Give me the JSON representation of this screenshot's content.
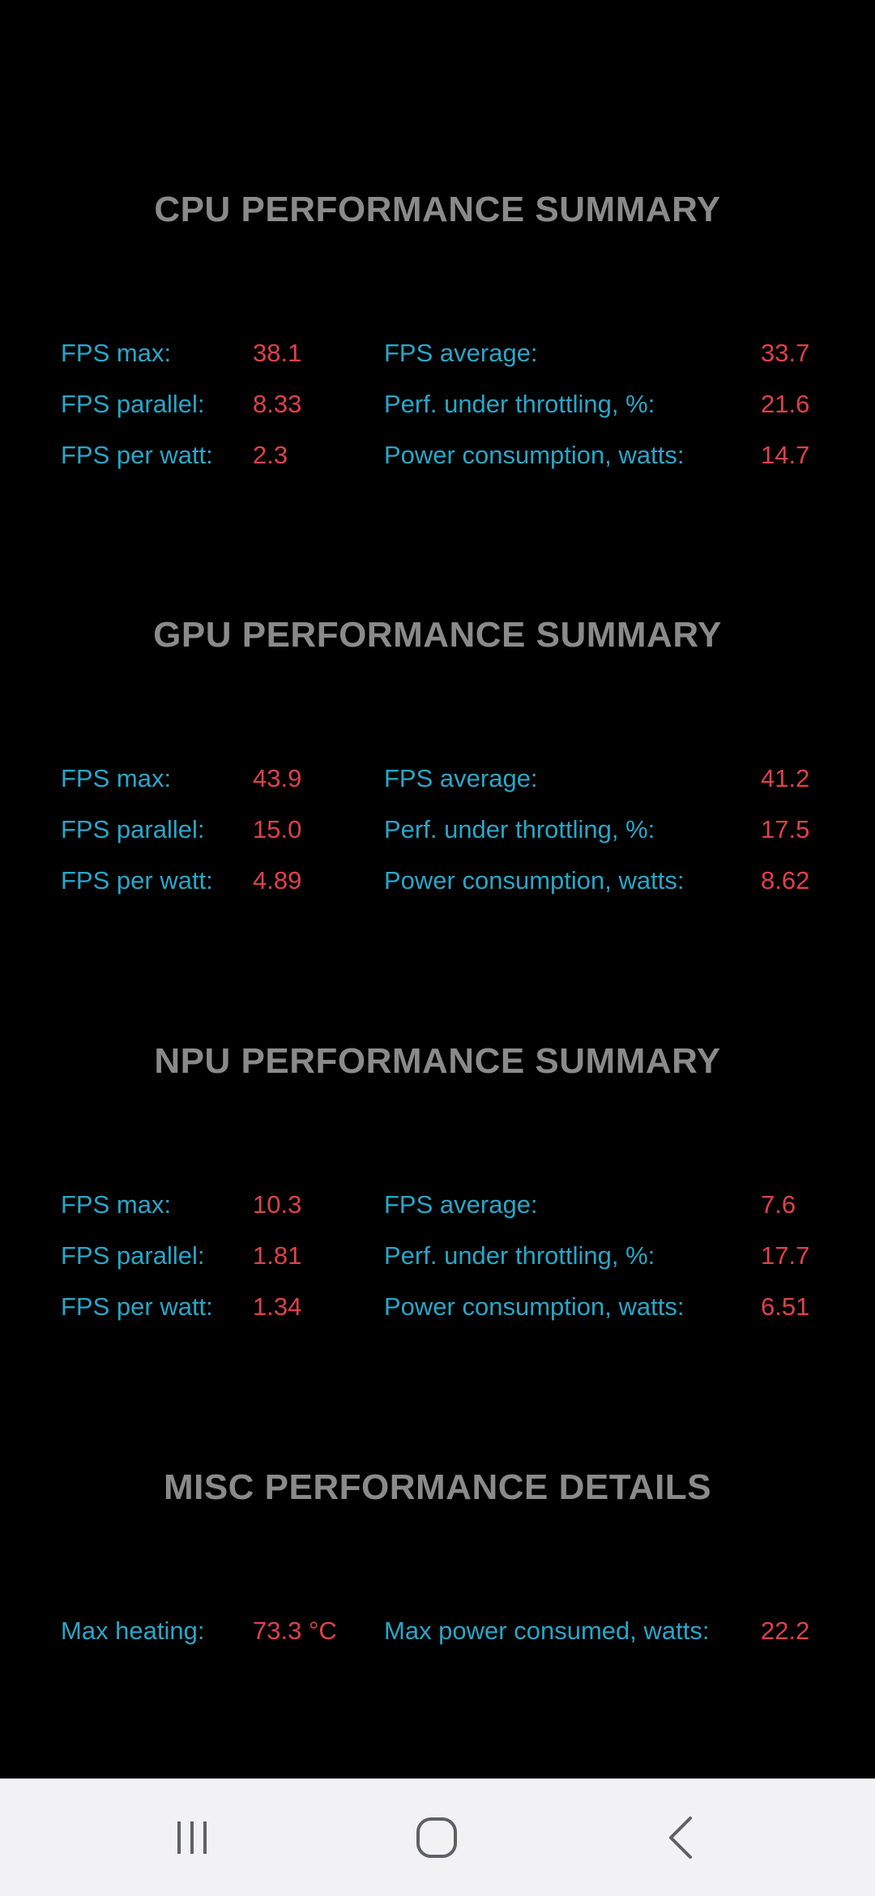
{
  "sections": [
    {
      "title": "CPU PERFORMANCE SUMMARY",
      "rows": [
        {
          "l1": "FPS max:",
          "v1": "38.1",
          "l2": "FPS average:",
          "v2": "33.7"
        },
        {
          "l1": "FPS parallel:",
          "v1": "8.33",
          "l2": "Perf. under throttling, %:",
          "v2": "21.6"
        },
        {
          "l1": "FPS per watt:",
          "v1": "2.3",
          "l2": "Power consumption, watts:",
          "v2": "14.7"
        }
      ]
    },
    {
      "title": "GPU PERFORMANCE SUMMARY",
      "rows": [
        {
          "l1": "FPS max:",
          "v1": "43.9",
          "l2": "FPS average:",
          "v2": "41.2"
        },
        {
          "l1": "FPS parallel:",
          "v1": "15.0",
          "l2": "Perf. under throttling, %:",
          "v2": "17.5"
        },
        {
          "l1": "FPS per watt:",
          "v1": "4.89",
          "l2": "Power consumption, watts:",
          "v2": "8.62"
        }
      ]
    },
    {
      "title": "NPU PERFORMANCE SUMMARY",
      "rows": [
        {
          "l1": "FPS max:",
          "v1": "10.3",
          "l2": "FPS average:",
          "v2": "7.6"
        },
        {
          "l1": "FPS parallel:",
          "v1": "1.81",
          "l2": "Perf. under throttling, %:",
          "v2": "17.7"
        },
        {
          "l1": "FPS per watt:",
          "v1": "1.34",
          "l2": "Power consumption, watts:",
          "v2": "6.51"
        }
      ]
    },
    {
      "title": "MISC PERFORMANCE DETAILS",
      "rows": [
        {
          "l1": "Max heating:",
          "v1": "73.3 °C",
          "l2": "Max power consumed, watts:",
          "v2": "22.2"
        }
      ]
    }
  ],
  "navbar": {
    "icons": [
      "recent-apps-icon",
      "home-icon",
      "back-icon"
    ]
  },
  "colors": {
    "background": "#000000",
    "title": "#8a8a8a",
    "label": "#2aa6c9",
    "value": "#e0414a",
    "navbar": "#f2f2f4"
  }
}
